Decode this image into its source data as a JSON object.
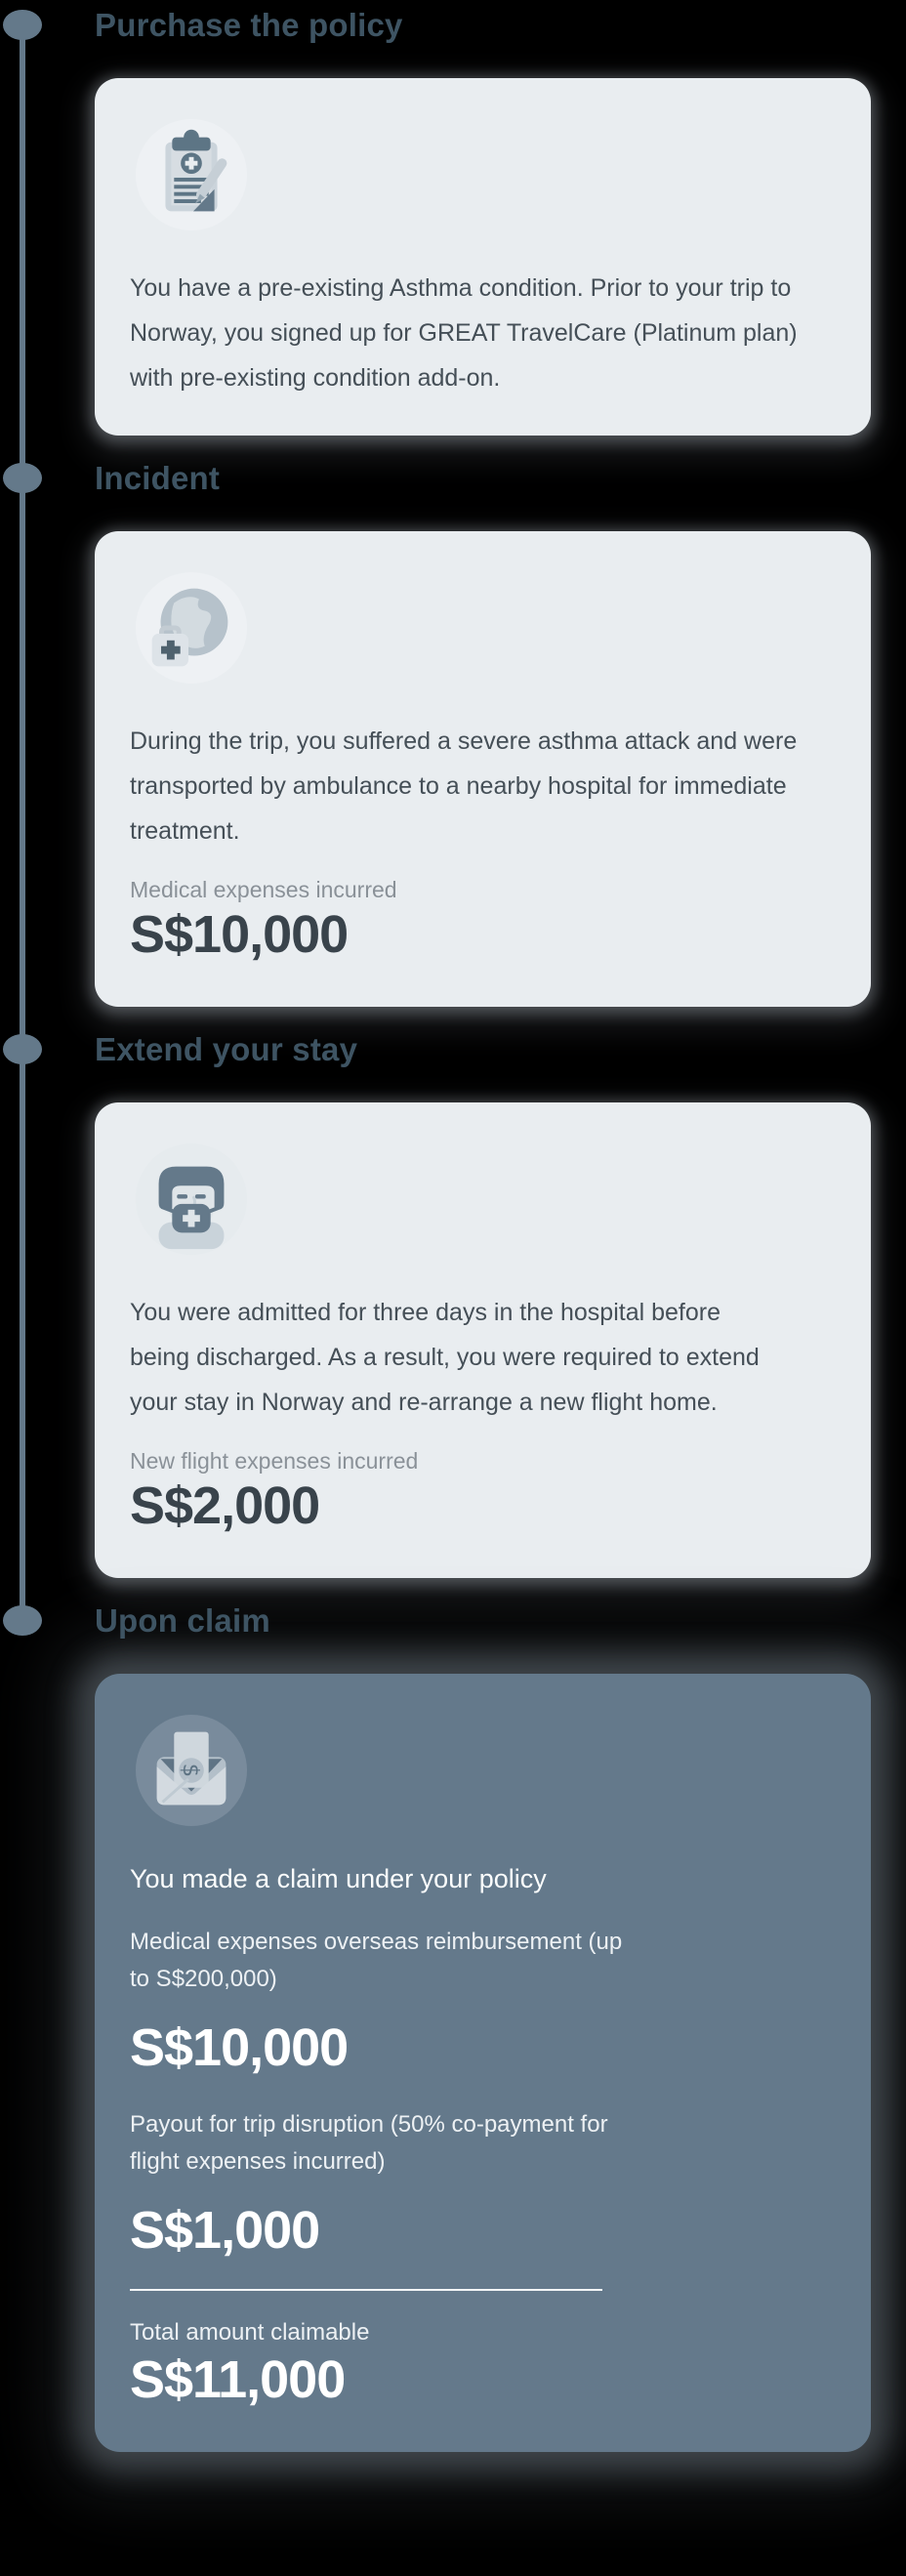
{
  "colors": {
    "background": "#000000",
    "accent_timeline": "#64798a",
    "heading_text": "#3e5463",
    "card_light_bg": "#e9edf0",
    "card_dark_bg": "#64798b",
    "body_text": "#454f57",
    "muted_label_text": "#8a9198",
    "amount_text": "#39434b",
    "dark_card_text": "#ffffff"
  },
  "timeline": {
    "sections": [
      {
        "heading": "Purchase the policy",
        "icon": "clipboard-medical-policy-icon",
        "card": {
          "variant": "light",
          "paragraph": "You have a pre-existing Asthma condition. Prior to your trip to Norway, you signed up for GREAT TravelCare (Platinum plan) with pre-existing condition add-on."
        }
      },
      {
        "heading": "Incident",
        "icon": "globe-first-aid-icon",
        "card": {
          "variant": "light",
          "paragraph": "During the trip, you suffered a severe asthma attack and were transported by ambulance to a nearby hospital for immediate treatment.",
          "amount_label": "Medical expenses incurred",
          "amount": "S$10,000"
        }
      },
      {
        "heading": "Extend your stay",
        "icon": "doctor-face-mask-icon",
        "card": {
          "variant": "light",
          "paragraph": "You were admitted for three days in the hospital before being discharged. As a result, you were required to extend your stay in Norway and re-arrange a new flight home.",
          "amount_label": "New flight expenses incurred",
          "amount": "S$2,000"
        }
      },
      {
        "heading": "Upon claim",
        "icon": "money-envelope-icon",
        "card": {
          "variant": "dark",
          "intro": "You made a claim under your policy",
          "line_items": [
            {
              "label": "Medical expenses overseas reimbursement (up to S$200,000)",
              "amount": "S$10,000"
            },
            {
              "label": "Payout for trip disruption (50% co-payment for flight expenses incurred)",
              "amount": "S$1,000"
            }
          ],
          "total_label": "Total amount claimable",
          "total_amount": "S$11,000"
        }
      }
    ]
  }
}
